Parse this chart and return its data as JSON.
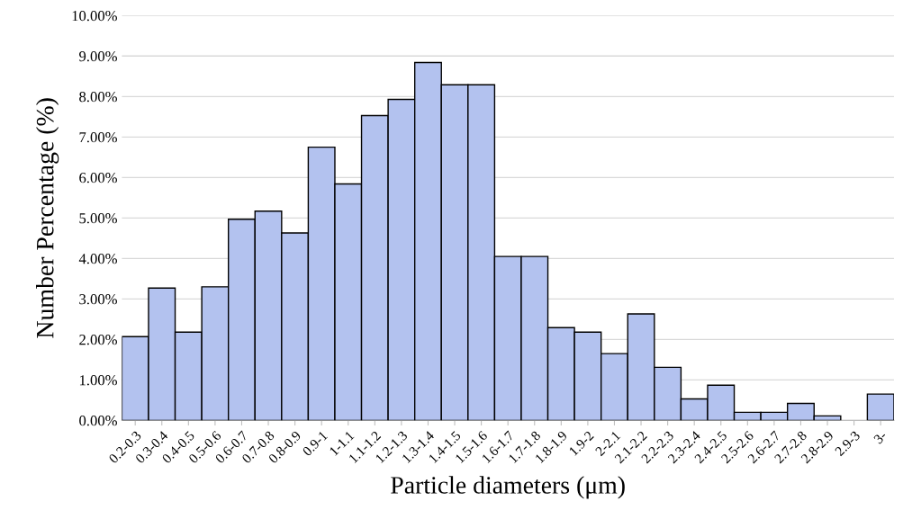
{
  "chart_data": {
    "type": "bar",
    "xlabel": "Particle diameters (μm)",
    "ylabel": "Number Percentage (%)",
    "categories": [
      "0.2-0.3",
      "0.3-0.4",
      "0.4-0.5",
      "0.5-0.6",
      "0.6-0.7",
      "0.7-0.8",
      "0.8-0.9",
      "0.9-1",
      "1-1.1",
      "1.1-1.2",
      "1.2-1.3",
      "1.3-1.4",
      "1.4-1.5",
      "1.5-1.6",
      "1.6-1.7",
      "1.7-1.8",
      "1.8-1.9",
      "1.9-2",
      "2-2.1",
      "2.1-2.2",
      "2.2-2.3",
      "2.3-2.4",
      "2.4-2.5",
      "2.5-2.6",
      "2.6-2.7",
      "2.7-2.8",
      "2.8-2.9",
      "2.9-3",
      "3-"
    ],
    "values": [
      2.07,
      3.27,
      2.18,
      3.3,
      4.97,
      5.17,
      4.63,
      6.75,
      5.84,
      7.53,
      7.93,
      8.84,
      8.29,
      8.29,
      4.05,
      4.05,
      2.29,
      2.18,
      1.65,
      2.63,
      1.31,
      0.53,
      0.87,
      0.2,
      0.2,
      0.42,
      0.11,
      null,
      0.65
    ],
    "color": "#b3c2ef",
    "ylim": [
      0,
      10
    ],
    "yticks": [
      {
        "value": 0,
        "label": "0.00%"
      },
      {
        "value": 1,
        "label": "1.00%"
      },
      {
        "value": 2,
        "label": "2.00%"
      },
      {
        "value": 3,
        "label": "3.00%"
      },
      {
        "value": 4,
        "label": "4.00%"
      },
      {
        "value": 5,
        "label": "5.00%"
      },
      {
        "value": 6,
        "label": "6.00%"
      },
      {
        "value": 7,
        "label": "7.00%"
      },
      {
        "value": 8,
        "label": "8.00%"
      },
      {
        "value": 9,
        "label": "9.00%"
      },
      {
        "value": 10,
        "label": "10.00%"
      }
    ],
    "grid": "y"
  }
}
